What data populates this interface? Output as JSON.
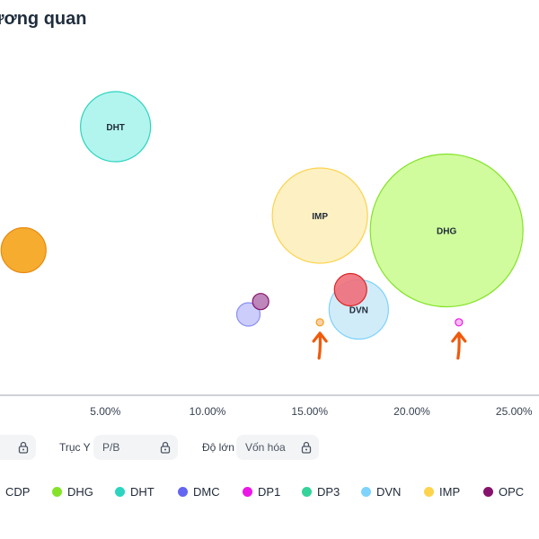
{
  "page": {
    "title": "ương quan"
  },
  "controls": {
    "x_axis_label": "",
    "y_axis_label": "Trục Y",
    "y_axis_value": "P/B",
    "size_label": "Độ lớn",
    "size_value": "Vốn hóa"
  },
  "legend": [
    {
      "label": "CDP",
      "color": "#f59e0b"
    },
    {
      "label": "DHG",
      "color": "#84e329"
    },
    {
      "label": "DHT",
      "color": "#2dd4bf"
    },
    {
      "label": "DMC",
      "color": "#6366f1"
    },
    {
      "label": "DP1",
      "color": "#ec17e6"
    },
    {
      "label": "DP3",
      "color": "#34d399"
    },
    {
      "label": "DVN",
      "color": "#7dd3fc"
    },
    {
      "label": "IMP",
      "color": "#fcd34d"
    },
    {
      "label": "OPC",
      "color": "#86136b"
    }
  ],
  "chart_data": {
    "type": "scatter",
    "title": "",
    "xlabel": "",
    "ylabel": "",
    "xlim": [
      0,
      25.5
    ],
    "x_ticks": [
      "5.00%",
      "10.00%",
      "15.00%",
      "20.00%",
      "25.00%"
    ],
    "x_tick_values": [
      5,
      10,
      15,
      20,
      25
    ],
    "grid": false,
    "points": [
      {
        "name": "DHT",
        "x": 5.5,
        "y": 2.7,
        "r": 39,
        "fill": "#a5f3eb",
        "stroke": "#2dd4bf",
        "label": "DHT"
      },
      {
        "name": "IMP",
        "x": 15.5,
        "y": 1.8,
        "r": 53,
        "fill": "#fdefb8",
        "stroke": "#fcd34d",
        "label": "IMP"
      },
      {
        "name": "DHG",
        "x": 21.7,
        "y": 1.65,
        "r": 85,
        "fill": "#c8fb8c",
        "stroke": "#84e329",
        "label": "DHG"
      },
      {
        "name": "CDP",
        "x": 1.0,
        "y": 1.45,
        "r": 25,
        "fill": "#f59e0b",
        "stroke": "#e88a10",
        "label": ""
      },
      {
        "name": "DVN",
        "x": 17.4,
        "y": 0.85,
        "r": 33,
        "fill": "#c9e9f8",
        "stroke": "#7dd3fc",
        "label": "DVN"
      },
      {
        "name": "OPC-red",
        "x": 17.0,
        "y": 1.05,
        "r": 18,
        "fill": "#ef6f7a",
        "stroke": "#dc2626",
        "label": ""
      },
      {
        "name": "DMC",
        "x": 12.0,
        "y": 0.8,
        "r": 13,
        "fill": "#c7c8fb",
        "stroke": "#8b8ef5",
        "label": ""
      },
      {
        "name": "OPC",
        "x": 12.6,
        "y": 0.93,
        "r": 9,
        "fill": "#b77ab4",
        "stroke": "#86136b",
        "label": ""
      },
      {
        "name": "CDP-small",
        "x": 15.5,
        "y": 0.72,
        "r": 4,
        "fill": "#fcc9a0",
        "stroke": "#f59e0b",
        "label": ""
      },
      {
        "name": "DP1",
        "x": 22.3,
        "y": 0.72,
        "r": 4,
        "fill": "#f6b2f3",
        "stroke": "#ec17e6",
        "label": ""
      }
    ],
    "annotations": [
      {
        "type": "arrow",
        "target": "CDP-small"
      },
      {
        "type": "arrow",
        "target": "DP1"
      }
    ]
  }
}
